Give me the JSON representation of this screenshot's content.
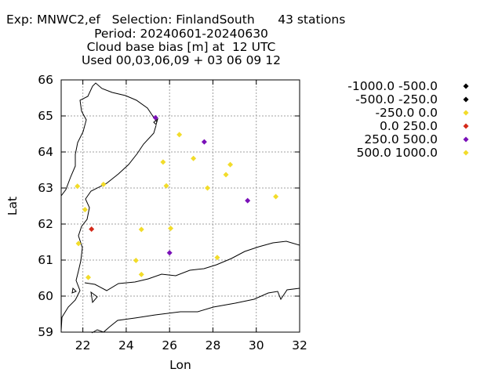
{
  "chart_data": {
    "type": "scatter",
    "title_lines": [
      "Exp: MNWC2,ef   Selection: FinlandSouth      43 stations",
      "Period: 20240601-20240630",
      "Cloud base bias [m] at  12 UTC",
      "Used 00,03,06,09 + 03 06 09 12"
    ],
    "xlabel": "Lon",
    "ylabel": "Lat",
    "xlim": [
      21,
      32
    ],
    "ylim": [
      59,
      66
    ],
    "xticks": [
      22,
      24,
      26,
      28,
      30,
      32
    ],
    "yticks": [
      59,
      60,
      61,
      62,
      63,
      64,
      65,
      66
    ],
    "grid": true,
    "legend_position": "right",
    "legend": [
      {
        "label": "-1000.0 -500.0",
        "color": "#000000"
      },
      {
        "label": "-500.0 -250.0",
        "color": "#000000"
      },
      {
        "label": "-250.0 0.0",
        "color": "#f2dc2a"
      },
      {
        "label": "0.0 250.0",
        "color": "#d42a1a"
      },
      {
        "label": "250.0 500.0",
        "color": "#7a10b8"
      },
      {
        "label": "500.0 1000.0",
        "color": "#f2dc2a"
      }
    ],
    "series": [
      {
        "class": "-250.0 0.0",
        "color": "#f2dc2a",
        "points": [
          [
            26.45,
            64.48
          ],
          [
            25.7,
            63.72
          ],
          [
            27.1,
            63.82
          ],
          [
            28.8,
            63.65
          ],
          [
            28.6,
            63.37
          ],
          [
            25.85,
            63.06
          ],
          [
            27.75,
            63.0
          ],
          [
            30.9,
            62.76
          ],
          [
            21.75,
            63.05
          ],
          [
            22.95,
            63.1
          ],
          [
            22.1,
            62.4
          ],
          [
            24.7,
            61.85
          ],
          [
            26.05,
            61.88
          ],
          [
            21.8,
            61.46
          ],
          [
            24.45,
            60.99
          ],
          [
            28.2,
            61.07
          ],
          [
            22.25,
            60.52
          ],
          [
            24.7,
            60.6
          ]
        ]
      },
      {
        "class": "0.0 250.0",
        "color": "#d42a1a",
        "points": [
          [
            22.4,
            61.86
          ]
        ]
      },
      {
        "class": "250.0 500.0",
        "color": "#7a10b8",
        "points": [
          [
            25.35,
            64.95
          ],
          [
            27.6,
            64.28
          ],
          [
            29.6,
            62.65
          ],
          [
            26.0,
            61.2
          ]
        ]
      }
    ]
  },
  "map_colors": {
    "coastline": "#000000",
    "grid": "#a0a0a0"
  }
}
